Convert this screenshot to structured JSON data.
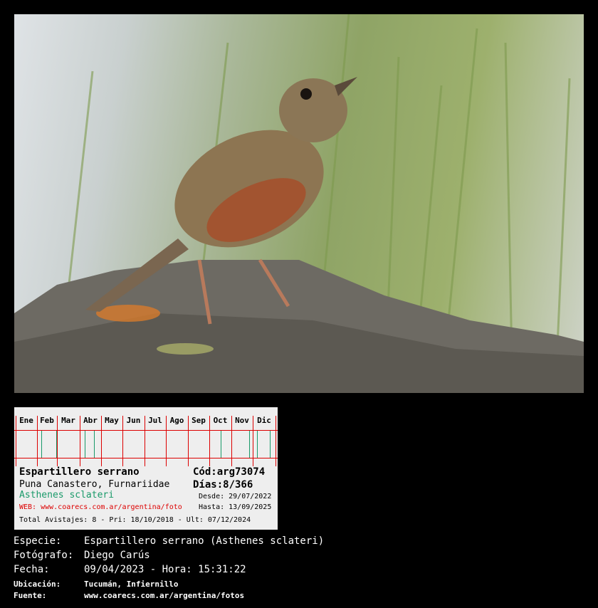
{
  "photo": {
    "subject": "bird-on-rock"
  },
  "card": {
    "months": [
      "Ene",
      "Feb",
      "Mar",
      "Abr",
      "May",
      "Jun",
      "Jul",
      "Ago",
      "Sep",
      "Oct",
      "Nov",
      "Dic"
    ],
    "sighting_days_of_year": [
      36,
      57,
      97,
      110,
      289,
      329,
      340,
      358
    ],
    "common_name": "Espartillero serrano",
    "english_family": "Puna Canastero, Furnariidae",
    "scientific_name": "Asthenes sclateri",
    "web": "WEB: www.coarecs.com.ar/argentina/foto",
    "code": "Cód:arg73074",
    "days": "Días:8/366",
    "desde": "Desde: 29/07/2022",
    "hasta": "Hasta: 13/09/2025",
    "totals": "Total Avistajes: 8 - Pri: 18/10/2018 - Ult: 07/12/2024"
  },
  "info": {
    "especie_label": "Especie:",
    "especie": "Espartillero serrano (Asthenes sclateri)",
    "fotografo_label": "Fotógrafo:",
    "fotografo": "Diego Carús",
    "fecha_label": "Fecha:",
    "fecha": "09/04/2023 - Hora: 15:31:22",
    "ubicacion_label": "Ubicación:",
    "ubicacion": "Tucumán, Infiernillo",
    "fuente_label": "Fuente:",
    "fuente": "www.coarecs.com.ar/argentina/fotos"
  },
  "colors": {
    "grid": "#dd0000",
    "tick": "#1a9a6a",
    "scientific": "#1a9a6a",
    "web": "#dd0000"
  }
}
